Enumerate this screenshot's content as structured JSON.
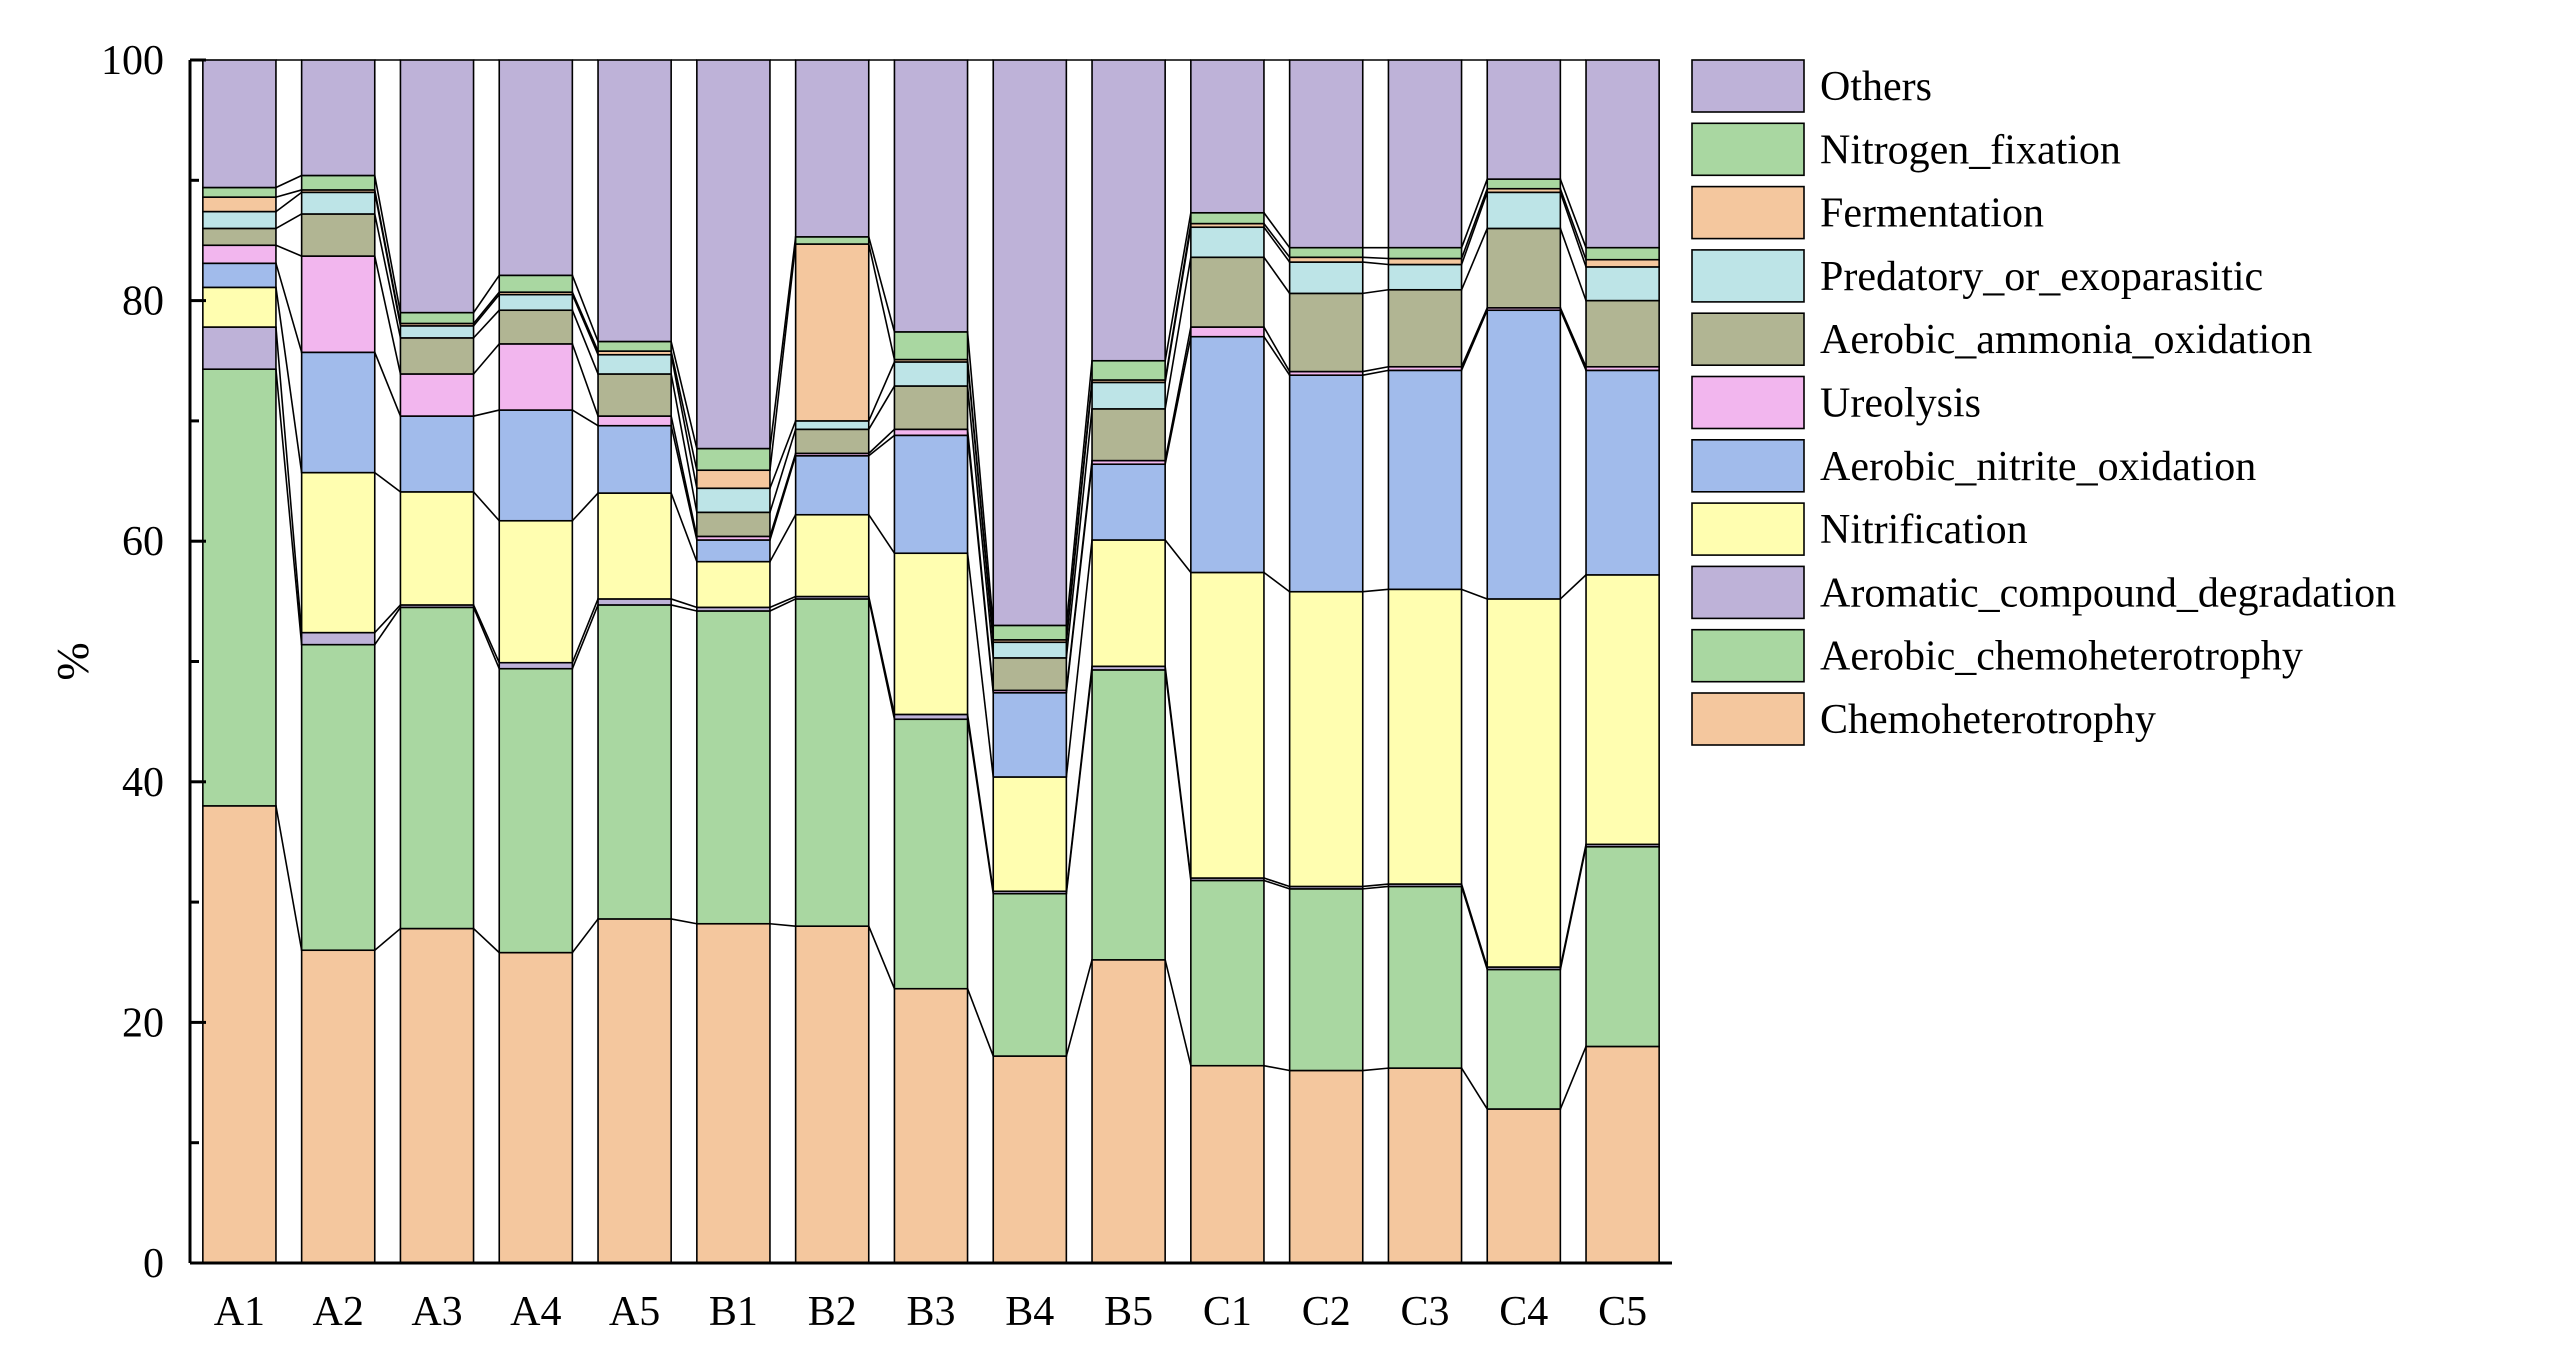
{
  "chart_data": {
    "type": "bar",
    "stacked": true,
    "connector_lines": true,
    "title": "",
    "xlabel": "",
    "ylabel": "%",
    "ylim": [
      0,
      100
    ],
    "yticks": [
      "0",
      "20",
      "40",
      "60",
      "80",
      "100"
    ],
    "grid": false,
    "legend_position": "right",
    "categories": [
      "A1",
      "A2",
      "A3",
      "A4",
      "A5",
      "B1",
      "B2",
      "B3",
      "B4",
      "B5",
      "C1",
      "C2",
      "C3",
      "C4",
      "C5"
    ],
    "series": [
      {
        "name": "Chemoheterotrophy",
        "color": "#F4C79E",
        "values": [
          38.0,
          26.0,
          27.8,
          25.8,
          28.6,
          28.2,
          28.0,
          22.8,
          17.2,
          25.2,
          16.4,
          16.0,
          16.2,
          12.8,
          18.0
        ]
      },
      {
        "name": "Aerobic_chemoheterotrophy",
        "color": "#A9D7A1",
        "values": [
          36.3,
          25.4,
          26.7,
          23.6,
          26.1,
          26.0,
          27.2,
          22.4,
          13.5,
          24.1,
          15.4,
          15.1,
          15.1,
          11.6,
          16.6
        ]
      },
      {
        "name": "Aromatic_compound_degradation",
        "color": "#BEB2D8",
        "values": [
          3.5,
          1.0,
          0.2,
          0.5,
          0.5,
          0.3,
          0.2,
          0.4,
          0.2,
          0.3,
          0.2,
          0.2,
          0.2,
          0.2,
          0.2
        ]
      },
      {
        "name": "Nitrification",
        "color": "#FFFEB0",
        "values": [
          3.3,
          13.3,
          9.4,
          11.8,
          8.8,
          3.8,
          6.8,
          13.4,
          9.5,
          10.5,
          25.4,
          24.5,
          24.5,
          30.6,
          22.4
        ]
      },
      {
        "name": "Aerobic_nitrite_oxidation",
        "color": "#A1BBEB",
        "values": [
          2.0,
          10.0,
          6.3,
          9.2,
          5.6,
          1.8,
          4.9,
          9.8,
          7.0,
          6.3,
          19.6,
          18.0,
          18.2,
          24.0,
          17.0
        ]
      },
      {
        "name": "Ureolysis",
        "color": "#F2B6EE",
        "values": [
          1.5,
          8.0,
          3.5,
          5.5,
          0.8,
          0.3,
          0.2,
          0.5,
          0.2,
          0.3,
          0.8,
          0.3,
          0.3,
          0.2,
          0.3
        ]
      },
      {
        "name": "Aerobic_ammonia_oxidation",
        "color": "#B1B593",
        "values": [
          1.4,
          3.5,
          3.0,
          2.8,
          3.5,
          2.0,
          2.0,
          3.6,
          2.7,
          4.3,
          5.8,
          6.5,
          6.4,
          6.6,
          5.5
        ]
      },
      {
        "name": "Predatory_or_exoparasitic",
        "color": "#BDE4E7",
        "values": [
          1.4,
          1.8,
          1.0,
          1.3,
          1.6,
          2.0,
          0.7,
          2.0,
          1.3,
          2.2,
          2.5,
          2.6,
          2.1,
          3.0,
          2.8
        ]
      },
      {
        "name": "Fermentation",
        "color": "#F4C79E",
        "values": [
          1.2,
          0.2,
          0.2,
          0.2,
          0.3,
          1.5,
          14.7,
          0.2,
          0.2,
          0.2,
          0.3,
          0.4,
          0.5,
          0.3,
          0.6
        ]
      },
      {
        "name": "Nitrogen_fixation",
        "color": "#A9D7A1",
        "values": [
          0.8,
          1.2,
          0.9,
          1.4,
          0.8,
          1.8,
          0.6,
          2.3,
          1.2,
          1.6,
          0.9,
          0.8,
          0.9,
          0.8,
          1.0
        ]
      },
      {
        "name": "Others",
        "color": "#BEB2D8",
        "values": [
          10.6,
          9.6,
          21.0,
          17.9,
          23.4,
          32.3,
          14.7,
          22.6,
          47.0,
          25.0,
          12.7,
          15.6,
          15.6,
          9.9,
          15.6
        ]
      }
    ]
  }
}
